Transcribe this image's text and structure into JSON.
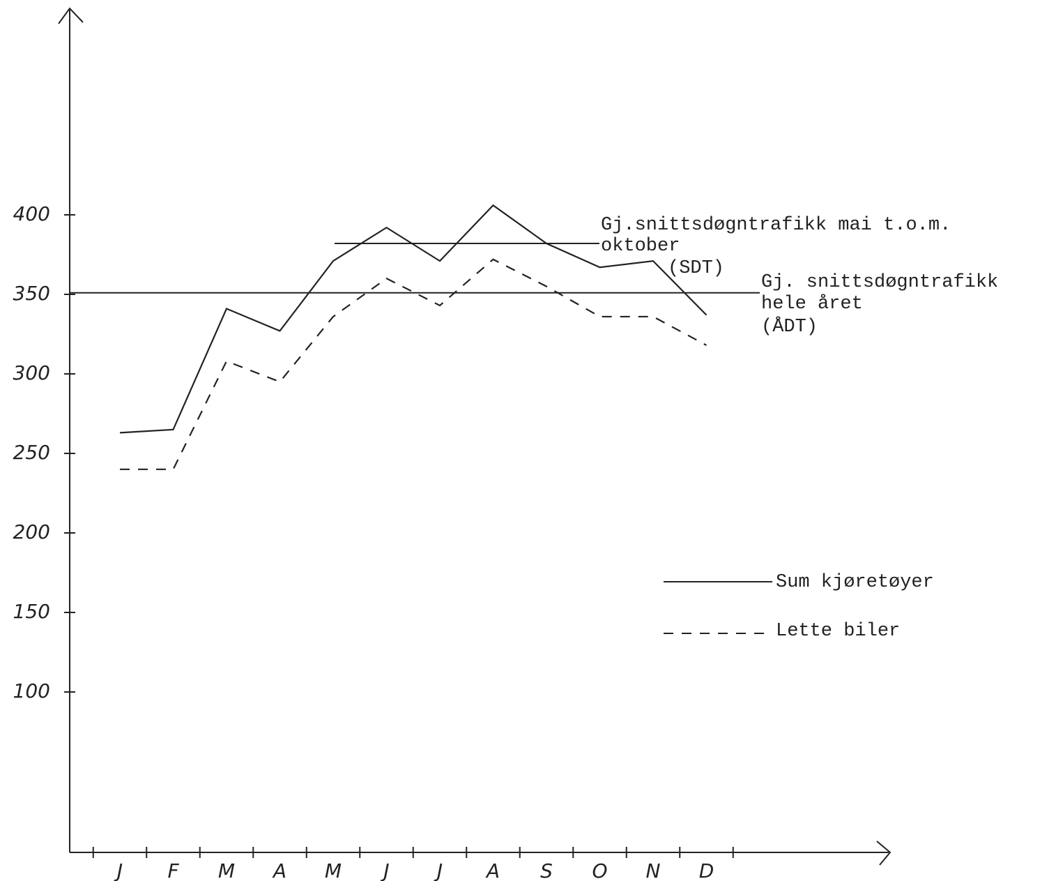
{
  "chart_data": {
    "type": "line",
    "categories": [
      "J",
      "F",
      "M",
      "A",
      "M",
      "J",
      "J",
      "A",
      "S",
      "O",
      "N",
      "D"
    ],
    "series": [
      {
        "name": "Sum kjøretøyer",
        "color": "#222222",
        "dash": "solid",
        "values": [
          263,
          265,
          341,
          327,
          371,
          392,
          371,
          406,
          382,
          367,
          371,
          337
        ]
      },
      {
        "name": "Lette biler",
        "color": "#222222",
        "dash": "dashed",
        "values": [
          240,
          240,
          308,
          295,
          336,
          360,
          343,
          372,
          355,
          336,
          336,
          318
        ]
      }
    ],
    "reference_lines": [
      {
        "value": 382,
        "lines": [
          "Gj.snittsdøgntrafikk mai t.o.m.",
          "oktober",
          "(SDT)"
        ]
      },
      {
        "value": 351,
        "lines": [
          "Gj. snittsdøgntrafikk",
          "hele året",
          "(ÅDT)"
        ]
      }
    ],
    "ylim": [
      0,
      525
    ],
    "yticks": [
      100,
      150,
      200,
      250,
      300,
      350,
      400
    ],
    "legend": "lower right"
  }
}
